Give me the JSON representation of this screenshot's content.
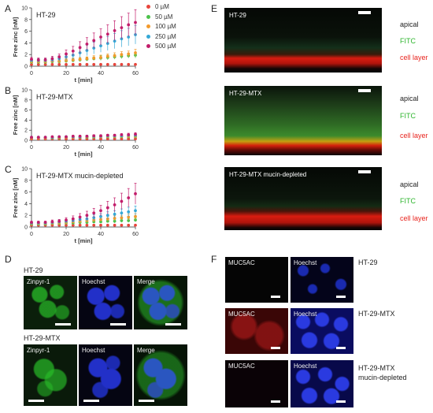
{
  "panel_letters": {
    "A": "A",
    "B": "B",
    "C": "C",
    "D": "D",
    "E": "E",
    "F": "F"
  },
  "legend": {
    "entries": [
      {
        "label": "0 µM",
        "color": "#e8453c"
      },
      {
        "label": "50 µM",
        "color": "#4cc24a"
      },
      {
        "label": "100 µM",
        "color": "#f39a2c"
      },
      {
        "label": "250  µM",
        "color": "#35a8d6"
      },
      {
        "label": "500 µM",
        "color": "#c21d6b"
      }
    ]
  },
  "chart_data": [
    {
      "type": "scatter",
      "title": "HT-29",
      "xlabel": "t [min]",
      "ylabel": "Free zinc [nM]",
      "xlim": [
        0,
        60
      ],
      "ylim": [
        0,
        10
      ],
      "xticks": [
        0,
        20,
        40,
        60
      ],
      "yticks": [
        0,
        2,
        4,
        6,
        8,
        10
      ],
      "x": [
        0,
        4,
        8,
        12,
        16,
        20,
        24,
        28,
        32,
        36,
        40,
        44,
        48,
        52,
        56,
        60
      ],
      "series": [
        {
          "name": "0 µM",
          "values": [
            0.3,
            0.3,
            0.3,
            0.3,
            0.3,
            0.3,
            0.3,
            0.3,
            0.3,
            0.3,
            0.3,
            0.3,
            0.3,
            0.3,
            0.3,
            0.3
          ],
          "err": [
            0.1,
            0.1,
            0.1,
            0.1,
            0.1,
            0.1,
            0.1,
            0.1,
            0.1,
            0.1,
            0.1,
            0.1,
            0.1,
            0.1,
            0.1,
            0.1
          ]
        },
        {
          "name": "50 µM",
          "values": [
            0.7,
            0.7,
            0.7,
            0.8,
            0.8,
            0.9,
            1.0,
            1.1,
            1.2,
            1.3,
            1.4,
            1.5,
            1.6,
            1.7,
            1.8,
            1.9
          ],
          "err": [
            0.2,
            0.2,
            0.2,
            0.2,
            0.2,
            0.3,
            0.3,
            0.3,
            0.3,
            0.3,
            0.4,
            0.4,
            0.4,
            0.4,
            0.4,
            0.5
          ]
        },
        {
          "name": "100 µM",
          "values": [
            0.8,
            0.8,
            0.8,
            0.9,
            0.9,
            1.0,
            1.1,
            1.2,
            1.3,
            1.4,
            1.5,
            1.7,
            1.8,
            2.0,
            2.1,
            2.3
          ],
          "err": [
            0.2,
            0.2,
            0.2,
            0.2,
            0.3,
            0.3,
            0.3,
            0.3,
            0.3,
            0.4,
            0.4,
            0.4,
            0.5,
            0.5,
            0.5,
            0.6
          ]
        },
        {
          "name": "250  µM",
          "values": [
            1.0,
            1.0,
            1.0,
            1.1,
            1.3,
            1.6,
            1.9,
            2.3,
            2.7,
            3.1,
            3.5,
            3.9,
            4.3,
            4.7,
            5.0,
            5.4
          ],
          "err": [
            0.3,
            0.3,
            0.3,
            0.4,
            0.5,
            0.6,
            0.7,
            0.8,
            0.9,
            1.0,
            1.1,
            1.2,
            1.3,
            1.4,
            1.5,
            1.6
          ]
        },
        {
          "name": "500 µM",
          "values": [
            1.2,
            1.1,
            1.1,
            1.3,
            1.6,
            2.1,
            2.6,
            3.2,
            3.8,
            4.4,
            5.0,
            5.5,
            6.1,
            6.6,
            7.1,
            7.5
          ],
          "err": [
            0.3,
            0.3,
            0.3,
            0.4,
            0.5,
            0.7,
            0.8,
            1.0,
            1.1,
            1.3,
            1.4,
            1.6,
            1.7,
            1.9,
            2.0,
            2.2
          ]
        }
      ]
    },
    {
      "type": "scatter",
      "title": "HT-29-MTX",
      "xlabel": "t [min]",
      "ylabel": "Free zinc [nM]",
      "xlim": [
        0,
        60
      ],
      "ylim": [
        0,
        10
      ],
      "xticks": [
        0,
        20,
        40,
        60
      ],
      "yticks": [
        0,
        2,
        4,
        6,
        8,
        10
      ],
      "x": [
        0,
        4,
        8,
        12,
        16,
        20,
        24,
        28,
        32,
        36,
        40,
        44,
        48,
        52,
        56,
        60
      ],
      "series": [
        {
          "name": "0 µM",
          "values": [
            0.3,
            0.3,
            0.3,
            0.3,
            0.3,
            0.3,
            0.3,
            0.3,
            0.3,
            0.3,
            0.3,
            0.3,
            0.3,
            0.3,
            0.3,
            0.3
          ],
          "err": [
            0.1,
            0.1,
            0.1,
            0.1,
            0.1,
            0.1,
            0.1,
            0.1,
            0.1,
            0.1,
            0.1,
            0.1,
            0.1,
            0.1,
            0.1,
            0.1
          ]
        },
        {
          "name": "50 µM",
          "values": [
            0.5,
            0.5,
            0.5,
            0.5,
            0.5,
            0.6,
            0.6,
            0.6,
            0.6,
            0.6,
            0.7,
            0.7,
            0.7,
            0.7,
            0.7,
            0.7
          ],
          "err": [
            0.1,
            0.1,
            0.1,
            0.1,
            0.1,
            0.1,
            0.1,
            0.1,
            0.1,
            0.1,
            0.1,
            0.1,
            0.1,
            0.1,
            0.1,
            0.1
          ]
        },
        {
          "name": "100 µM",
          "values": [
            0.5,
            0.5,
            0.5,
            0.6,
            0.6,
            0.6,
            0.6,
            0.7,
            0.7,
            0.7,
            0.7,
            0.8,
            0.8,
            0.8,
            0.8,
            0.8
          ],
          "err": [
            0.1,
            0.1,
            0.1,
            0.1,
            0.1,
            0.1,
            0.1,
            0.1,
            0.1,
            0.1,
            0.1,
            0.1,
            0.1,
            0.1,
            0.1,
            0.1
          ]
        },
        {
          "name": "250  µM",
          "values": [
            0.6,
            0.6,
            0.6,
            0.6,
            0.7,
            0.7,
            0.7,
            0.7,
            0.8,
            0.8,
            0.8,
            0.9,
            0.9,
            0.9,
            1.0,
            1.0
          ],
          "err": [
            0.1,
            0.1,
            0.1,
            0.1,
            0.1,
            0.1,
            0.1,
            0.1,
            0.2,
            0.2,
            0.2,
            0.2,
            0.2,
            0.2,
            0.2,
            0.2
          ]
        },
        {
          "name": "500 µM",
          "values": [
            0.6,
            0.6,
            0.6,
            0.7,
            0.7,
            0.7,
            0.8,
            0.8,
            0.8,
            0.9,
            0.9,
            1.0,
            1.0,
            1.1,
            1.1,
            1.2
          ],
          "err": [
            0.1,
            0.1,
            0.1,
            0.1,
            0.1,
            0.1,
            0.2,
            0.2,
            0.2,
            0.2,
            0.2,
            0.2,
            0.2,
            0.2,
            0.3,
            0.3
          ]
        }
      ]
    },
    {
      "type": "scatter",
      "title": "HT-29-MTX mucin-depleted",
      "xlabel": "t [min]",
      "ylabel": "Free zinc [nM]",
      "xlim": [
        0,
        60
      ],
      "ylim": [
        0,
        10
      ],
      "xticks": [
        0,
        20,
        40,
        60
      ],
      "yticks": [
        0,
        2,
        4,
        6,
        8,
        10
      ],
      "x": [
        0,
        4,
        8,
        12,
        16,
        20,
        24,
        28,
        32,
        36,
        40,
        44,
        48,
        52,
        56,
        60
      ],
      "series": [
        {
          "name": "0 µM",
          "values": [
            0.3,
            0.3,
            0.3,
            0.3,
            0.3,
            0.3,
            0.3,
            0.3,
            0.3,
            0.3,
            0.3,
            0.3,
            0.3,
            0.3,
            0.3,
            0.3
          ],
          "err": [
            0.1,
            0.1,
            0.1,
            0.1,
            0.1,
            0.1,
            0.1,
            0.1,
            0.1,
            0.1,
            0.1,
            0.1,
            0.1,
            0.1,
            0.1,
            0.1
          ]
        },
        {
          "name": "50 µM",
          "values": [
            0.5,
            0.5,
            0.5,
            0.6,
            0.6,
            0.7,
            0.7,
            0.8,
            0.8,
            0.9,
            0.9,
            1.0,
            1.0,
            1.1,
            1.1,
            1.2
          ],
          "err": [
            0.1,
            0.1,
            0.1,
            0.1,
            0.1,
            0.2,
            0.2,
            0.2,
            0.2,
            0.2,
            0.2,
            0.2,
            0.3,
            0.3,
            0.3,
            0.3
          ]
        },
        {
          "name": "100 µM",
          "values": [
            0.6,
            0.6,
            0.6,
            0.7,
            0.7,
            0.8,
            0.9,
            1.0,
            1.1,
            1.2,
            1.3,
            1.4,
            1.5,
            1.6,
            1.7,
            1.8
          ],
          "err": [
            0.1,
            0.1,
            0.1,
            0.2,
            0.2,
            0.2,
            0.2,
            0.3,
            0.3,
            0.3,
            0.3,
            0.4,
            0.4,
            0.4,
            0.5,
            0.5
          ]
        },
        {
          "name": "250  µM",
          "values": [
            0.7,
            0.7,
            0.7,
            0.8,
            0.9,
            1.0,
            1.1,
            1.3,
            1.4,
            1.6,
            1.8,
            2.0,
            2.2,
            2.4,
            2.6,
            2.8
          ],
          "err": [
            0.2,
            0.2,
            0.2,
            0.2,
            0.3,
            0.3,
            0.3,
            0.4,
            0.4,
            0.5,
            0.5,
            0.6,
            0.6,
            0.7,
            0.8,
            0.8
          ]
        },
        {
          "name": "500 µM",
          "values": [
            0.8,
            0.8,
            0.8,
            0.9,
            1.0,
            1.2,
            1.4,
            1.7,
            2.0,
            2.4,
            2.8,
            3.3,
            3.8,
            4.4,
            5.0,
            5.7
          ],
          "err": [
            0.2,
            0.2,
            0.2,
            0.3,
            0.3,
            0.4,
            0.5,
            0.6,
            0.7,
            0.8,
            0.9,
            1.1,
            1.2,
            1.4,
            1.6,
            1.8
          ]
        }
      ]
    }
  ],
  "panel_d": {
    "row1_title": "HT-29",
    "row2_title": "HT-29-MTX",
    "labels": {
      "zinpyr": "Zinpyr-1",
      "hoechst": "Hoechst",
      "merge": "Merge"
    }
  },
  "panel_e": {
    "sections": [
      {
        "title": "HT-29"
      },
      {
        "title": "HT-29-MTX"
      },
      {
        "title": "HT-29-MTX mucin-depleted"
      }
    ],
    "side_labels": {
      "apical": "apical",
      "fitc": "FITC",
      "cell_layer": "cell layer"
    },
    "colors": {
      "fitc": "#2db52d",
      "cell_layer": "#e8231d"
    }
  },
  "panel_f": {
    "labels": {
      "muc5ac": "MUC5AC",
      "hoechst": "Hoechst"
    },
    "rows": [
      {
        "name": "HT-29"
      },
      {
        "name": "HT-29-MTX"
      },
      {
        "name": "HT-29-MTX\nmucin-depleted"
      }
    ]
  }
}
